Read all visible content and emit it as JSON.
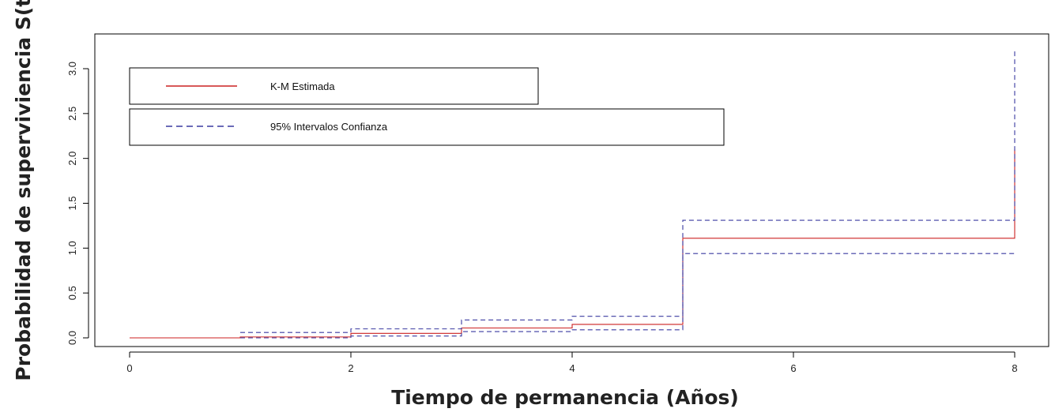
{
  "chart_data": {
    "type": "line",
    "title": "",
    "xlabel": "Tiempo de permanencia (Años)",
    "ylabel": "Probabilidad de superviviencia S(t)",
    "xlim": [
      0,
      8.3
    ],
    "ylim": [
      -0.1,
      3.4
    ],
    "x_ticks": [
      "0",
      "2",
      "4",
      "6",
      "8"
    ],
    "y_ticks": [
      "0.0",
      "0.5",
      "1.0",
      "1.5",
      "2.0",
      "2.5",
      "3.0"
    ],
    "grid": false,
    "legend_placement": "top-left",
    "series": [
      {
        "name": "K-M Estimada",
        "color": "#cc2222",
        "style": "solid",
        "step": true,
        "x": [
          0,
          1,
          2,
          3,
          4,
          5,
          8,
          8
        ],
        "y": [
          0.0,
          0.01,
          0.05,
          0.11,
          0.15,
          1.11,
          1.11,
          2.1
        ]
      },
      {
        "name": "95% Intervalos Confianza",
        "color": "#3a3aa0",
        "style": "dashed",
        "step": true,
        "x": [
          1,
          2,
          3,
          4,
          5,
          8,
          8
        ],
        "y": [
          0.06,
          0.1,
          0.2,
          0.24,
          1.31,
          1.31,
          3.2
        ]
      },
      {
        "name": "",
        "color": "#3a3aa0",
        "style": "dashed",
        "step": true,
        "x": [
          1,
          2,
          3,
          4,
          5,
          8
        ],
        "y": [
          0.0,
          0.02,
          0.07,
          0.09,
          0.94,
          0.94
        ]
      }
    ]
  }
}
